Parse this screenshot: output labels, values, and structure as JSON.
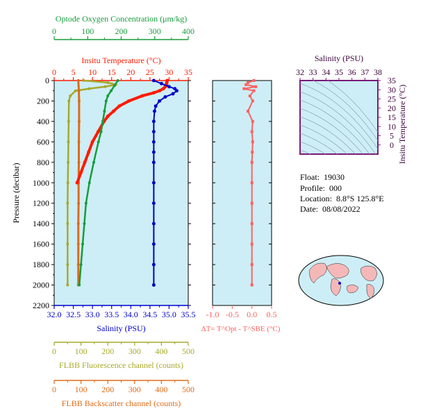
{
  "colors": {
    "oxygen": "#169c3c",
    "temperature": "#ff1a00",
    "salinity": "#0000cc",
    "fluorescence": "#a8a82a",
    "backscatter": "#e06a18",
    "delta_t": "#ff6060",
    "plot_bg": "#cdeef6",
    "inset_frame": "#7a1a7a",
    "inset_label": "#3a003a"
  },
  "info": {
    "float_label": "Float:",
    "float_value": "19030",
    "profile_label": "Profile:",
    "profile_value": "000",
    "location_label": "Location:",
    "location_value": "8.8°S 125.8°E",
    "date_label": "Date:",
    "date_value": "08/08/2022"
  },
  "chart_data": [
    {
      "type": "line",
      "name": "main-profile",
      "ylabel": "Pressure (decibar)",
      "ylim": [
        2200,
        0
      ],
      "y_ticks": [
        "0",
        "200",
        "400",
        "600",
        "800",
        "1000",
        "1200",
        "1400",
        "1600",
        "1800",
        "2000",
        "2200"
      ],
      "axes": {
        "oxygen": {
          "label": "Optode Oxygen Concentration (μm/kg)",
          "range": [
            0,
            400
          ],
          "ticks": [
            "0",
            "100",
            "200",
            "300",
            "400"
          ]
        },
        "temperature": {
          "label": "Insitu Temperature (°C)",
          "range": [
            0,
            35
          ],
          "ticks": [
            "0",
            "5",
            "10",
            "15",
            "20",
            "25",
            "30",
            "35"
          ]
        },
        "salinity": {
          "label": "Salinity (PSU)",
          "range": [
            32.0,
            35.5
          ],
          "ticks": [
            "32.0",
            "32.5",
            "33.0",
            "33.5",
            "34.0",
            "34.5",
            "35.0",
            "35.5"
          ]
        },
        "fluorescence": {
          "label": "FLBB Fluorescence channel (counts)",
          "range": [
            0,
            500
          ],
          "ticks": [
            "0",
            "100",
            "200",
            "300",
            "400",
            "500"
          ]
        },
        "backscatter": {
          "label": "FLBB Backscatter channel (counts)",
          "range": [
            0,
            500
          ],
          "ticks": [
            "0",
            "100",
            "200",
            "300",
            "400",
            "500"
          ]
        }
      },
      "series": {
        "temperature": {
          "pressure": [
            0,
            20,
            40,
            60,
            80,
            100,
            120,
            150,
            200,
            250,
            300,
            350,
            400,
            500,
            600,
            700,
            800,
            900,
            1000
          ],
          "values": [
            29.5,
            29.4,
            29.3,
            29.0,
            28.5,
            27.5,
            26.0,
            23.0,
            19.5,
            17.0,
            15.5,
            14.0,
            13.0,
            11.5,
            10.0,
            9.0,
            8.0,
            7.0,
            6.0
          ]
        },
        "salinity": {
          "pressure": [
            0,
            30,
            60,
            80,
            100,
            130,
            160,
            200,
            250,
            300,
            400,
            500,
            600,
            700,
            800,
            1000,
            1200,
            1400,
            1600,
            1800,
            2000
          ],
          "values": [
            34.6,
            34.8,
            35.0,
            35.15,
            35.2,
            35.1,
            34.9,
            34.75,
            34.65,
            34.62,
            34.6,
            34.6,
            34.6,
            34.6,
            34.6,
            34.6,
            34.6,
            34.6,
            34.6,
            34.6,
            34.6
          ]
        },
        "oxygen": {
          "pressure": [
            0,
            50,
            100,
            150,
            200,
            300,
            400,
            500,
            600,
            800,
            1000,
            1200,
            1400,
            1600,
            1800,
            2000
          ],
          "values": [
            190,
            180,
            170,
            160,
            155,
            150,
            145,
            140,
            132,
            118,
            105,
            95,
            90,
            85,
            80,
            75
          ]
        },
        "fluorescence": {
          "pressure": [
            0,
            20,
            40,
            60,
            80,
            100,
            150,
            200,
            400,
            600,
            800,
            1000,
            1200,
            1400,
            1600,
            1800,
            2000
          ],
          "values": [
            110,
            200,
            230,
            190,
            130,
            80,
            60,
            55,
            54,
            53,
            52,
            51,
            50,
            50,
            50,
            50,
            50
          ]
        },
        "backscatter": {
          "pressure": [
            0,
            100,
            200,
            400,
            600,
            800,
            1000,
            1200,
            1400,
            1600,
            1800,
            2000
          ],
          "values": [
            90,
            92,
            93,
            93,
            92,
            92,
            91,
            91,
            90,
            90,
            90,
            90
          ]
        }
      }
    },
    {
      "type": "scatter",
      "name": "delta-t",
      "xlabel": "ΔT= T^Opt - T^SBE (°C)",
      "xlim": [
        -1.0,
        0.5
      ],
      "x_ticks": [
        "-1.0",
        "-0.5",
        "0.0",
        "0.5"
      ],
      "ylim": [
        2200,
        0
      ],
      "pressure": [
        0,
        20,
        40,
        60,
        80,
        100,
        150,
        200,
        300,
        400,
        500,
        600,
        700,
        800,
        1000,
        1200,
        1400,
        1600,
        1800,
        2000
      ],
      "values": [
        0.05,
        -0.1,
        -0.15,
        0.1,
        -0.2,
        0.05,
        -0.05,
        0.02,
        -0.1,
        0.02,
        0.0,
        0.02,
        0.01,
        0.0,
        0.0,
        0.0,
        0.0,
        0.0,
        0.0,
        0.0
      ]
    },
    {
      "type": "heatmap",
      "name": "ts-inset",
      "xlabel": "Salinity (PSU)",
      "ylabel": "Insitu Temperature (°C)",
      "xlim": [
        32,
        38
      ],
      "ylim": [
        -5,
        35
      ],
      "x_ticks": [
        "32",
        "33",
        "34",
        "35",
        "36",
        "37",
        "38"
      ],
      "y_ticks": [
        "0",
        "5",
        "10",
        "15",
        "20",
        "25",
        "30",
        "35"
      ]
    }
  ]
}
